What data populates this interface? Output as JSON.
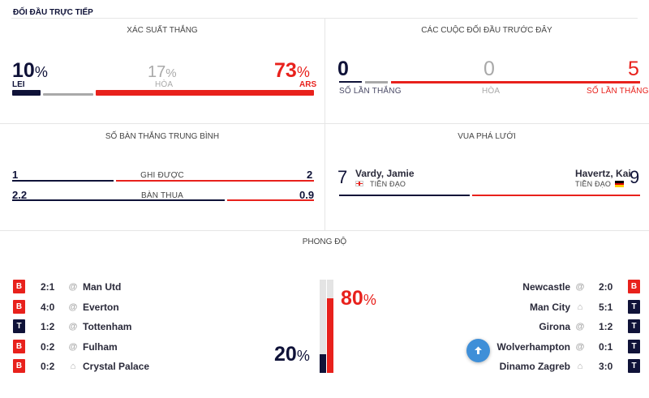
{
  "header": {
    "title": "ĐỐI ĐẦU TRỰC TIẾP"
  },
  "win_prob": {
    "title": "XÁC SUẤT THẮNG",
    "home": {
      "value": "10",
      "pct": "%",
      "code": "LEI"
    },
    "draw": {
      "value": "17",
      "pct": "%",
      "label": "HÒA"
    },
    "away": {
      "value": "73",
      "pct": "%",
      "code": "ARS"
    }
  },
  "h2h": {
    "title": "CÁC CUỘC ĐỐI ĐẦU TRƯỚC ĐÂY",
    "home": {
      "value": "0",
      "label": "SỐ LẦN THẮNG"
    },
    "draw": {
      "value": "0",
      "label": "HÒA"
    },
    "away": {
      "value": "5",
      "label": "SỐ LẦN THẮNG"
    }
  },
  "avg_goals": {
    "title": "SỐ BÀN THẮNG TRUNG BÌNH",
    "scored": {
      "label": "GHI ĐƯỢC",
      "home": "1",
      "away": "2"
    },
    "conceded": {
      "label": "BÀN THUA",
      "home": "2.2",
      "away": "0.9"
    }
  },
  "top_scorers": {
    "title": "VUA PHÁ LƯỚI",
    "home": {
      "goals": "7",
      "name": "Vardy, Jamie",
      "position": "TIỀN ĐẠO",
      "flag": "england-flag-icon"
    },
    "away": {
      "goals": "9",
      "name": "Havertz, Kai",
      "position": "TIỀN ĐẠO",
      "flag": "germany-flag-icon"
    }
  },
  "form": {
    "title": "PHONG ĐỘ",
    "home_pct": {
      "value": "20",
      "pct": "%"
    },
    "away_pct": {
      "value": "80",
      "pct": "%"
    },
    "home_matches": [
      {
        "result": "B",
        "score": "2:1",
        "venue": "@",
        "opponent": "Man Utd"
      },
      {
        "result": "B",
        "score": "4:0",
        "venue": "@",
        "opponent": "Everton"
      },
      {
        "result": "T",
        "score": "1:2",
        "venue": "@",
        "opponent": "Tottenham"
      },
      {
        "result": "B",
        "score": "0:2",
        "venue": "@",
        "opponent": "Fulham"
      },
      {
        "result": "B",
        "score": "0:2",
        "venue": "home",
        "opponent": "Crystal Palace"
      }
    ],
    "away_matches": [
      {
        "result": "B",
        "score": "2:0",
        "venue": "@",
        "opponent": "Newcastle"
      },
      {
        "result": "T",
        "score": "5:1",
        "venue": "home",
        "opponent": "Man City"
      },
      {
        "result": "T",
        "score": "1:2",
        "venue": "@",
        "opponent": "Girona"
      },
      {
        "result": "T",
        "score": "0:1",
        "venue": "@",
        "opponent": "Wolverhampton"
      },
      {
        "result": "T",
        "score": "3:0",
        "venue": "home",
        "opponent": "Dinamo Zagreb"
      }
    ]
  },
  "colors": {
    "home": "#0f1238",
    "away": "#e8211c",
    "neutral": "#a9a9a9",
    "fab": "#3f8fd8"
  }
}
